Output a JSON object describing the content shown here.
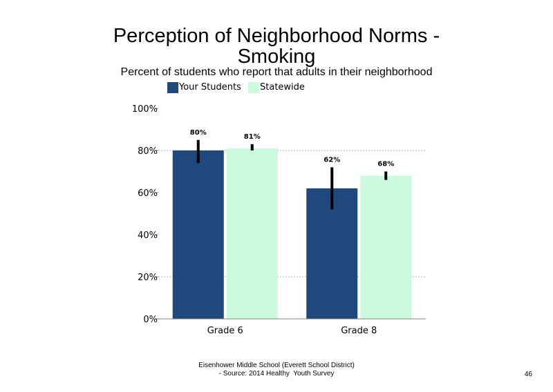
{
  "slide": {
    "title_line1": "Perception of Neighborhood Norms -",
    "title_line2": "Smoking",
    "subtitle": "Percent of students who report that adults in their neighborhood",
    "footer_line1": "Eisenhower Middle School (Everett School District)",
    "footer_line2": "- Source: 2014 Healthy  Youth Survey",
    "page_number": "46"
  },
  "chart_data": {
    "type": "bar",
    "categories": [
      "Grade 6",
      "Grade 8"
    ],
    "series": [
      {
        "name": "Your Students",
        "color": "#1f497d",
        "values": [
          80,
          62
        ],
        "labels": [
          "80%",
          "62%"
        ],
        "error_low": [
          74,
          52
        ],
        "error_high": [
          85,
          72
        ]
      },
      {
        "name": "Statewide",
        "color": "#ccfadc",
        "values": [
          81,
          68
        ],
        "labels": [
          "81%",
          "68%"
        ],
        "error_low": [
          80,
          66
        ],
        "error_high": [
          83,
          70
        ]
      }
    ],
    "ylim": [
      0,
      100
    ],
    "yticks": [
      0,
      20,
      40,
      60,
      80,
      100
    ],
    "ytick_labels": [
      "0%",
      "20%",
      "40%",
      "60%",
      "80%",
      "100%"
    ],
    "gridlines": [
      20,
      80
    ],
    "legend": "top-left"
  }
}
